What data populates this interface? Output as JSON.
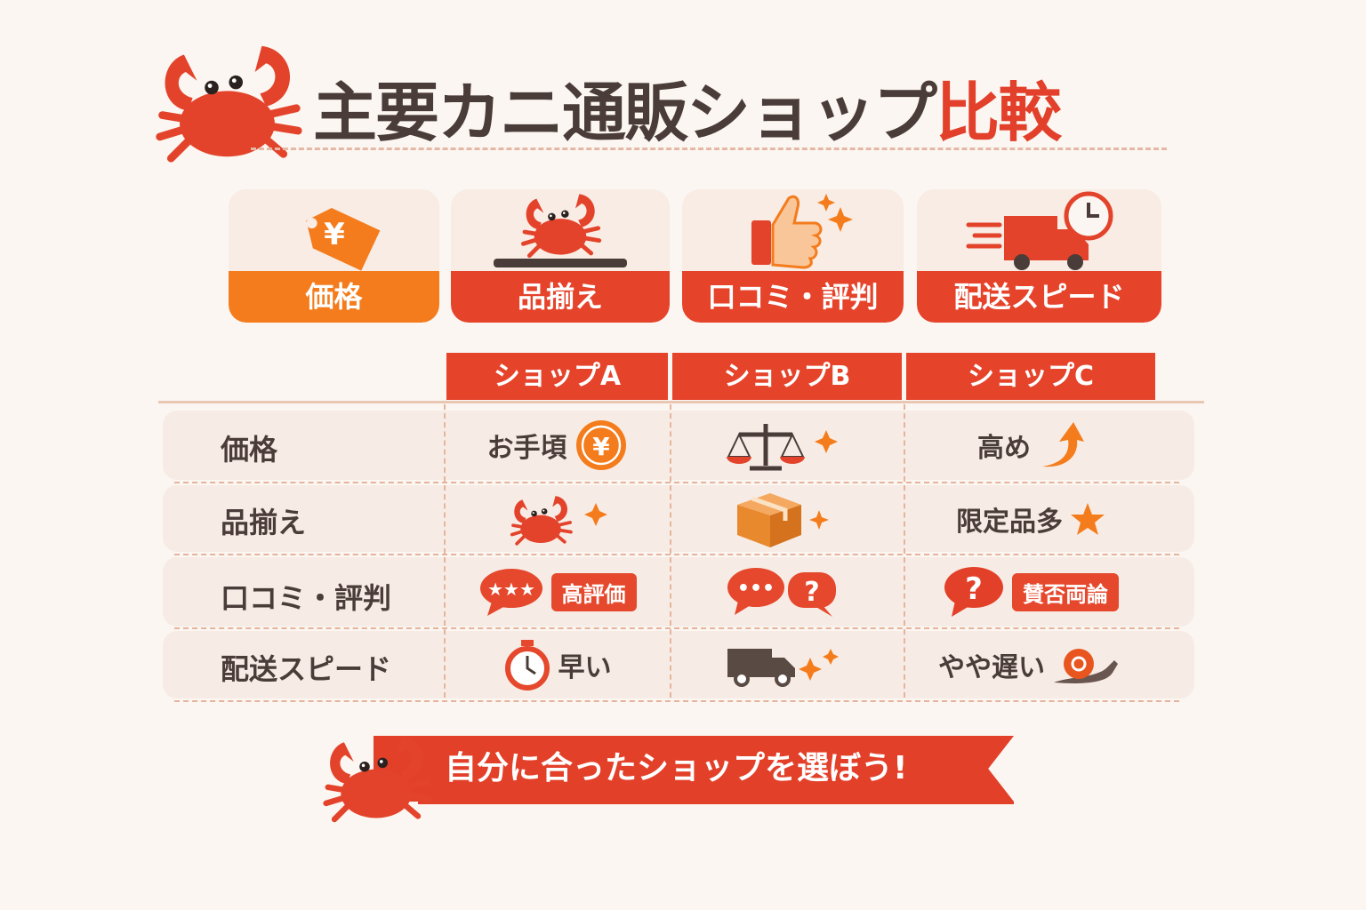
{
  "title": {
    "main": "主要カニ通販ショップ",
    "highlight": "比較"
  },
  "categories": [
    {
      "label": "価格",
      "icon": "yen-price-tag-icon"
    },
    {
      "label": "品揃え",
      "icon": "crab-plate-icon"
    },
    {
      "label": "口コミ・評判",
      "icon": "thumbs-up-icon"
    },
    {
      "label": "配送スピード",
      "icon": "delivery-truck-clock-icon"
    }
  ],
  "table": {
    "columns": [
      "ショップA",
      "ショップB",
      "ショップC"
    ],
    "rows": [
      {
        "label": "価格",
        "cells": [
          {
            "text": "お手頃",
            "icon": "yen-coin-icon"
          },
          {
            "text": "",
            "icon": "balance-scale-icon"
          },
          {
            "text": "高め",
            "icon": "arrow-up-icon"
          }
        ]
      },
      {
        "label": "品揃え",
        "cells": [
          {
            "text": "",
            "icon": "crab-icon"
          },
          {
            "text": "",
            "icon": "box-icon"
          },
          {
            "text": "限定品多",
            "icon": "star-icon"
          }
        ]
      },
      {
        "label": "口コミ・評判",
        "cells": [
          {
            "text": "高評価",
            "icon": "star-speech-bubble-icon"
          },
          {
            "text": "",
            "icon": "speech-question-icon"
          },
          {
            "text": "賛否両論",
            "icon": "question-bubble-icon"
          }
        ]
      },
      {
        "label": "配送スピード",
        "cells": [
          {
            "text": "早い",
            "icon": "stopwatch-icon"
          },
          {
            "text": "",
            "icon": "truck-icon"
          },
          {
            "text": "やや遅い",
            "icon": "snail-icon"
          }
        ]
      }
    ]
  },
  "banner": {
    "text": "自分に合ったショップを選ぼう!"
  },
  "colors": {
    "accent": "#e6432b",
    "orange": "#f47c1c",
    "text": "#4a3c38",
    "background": "#fbf6f1"
  }
}
